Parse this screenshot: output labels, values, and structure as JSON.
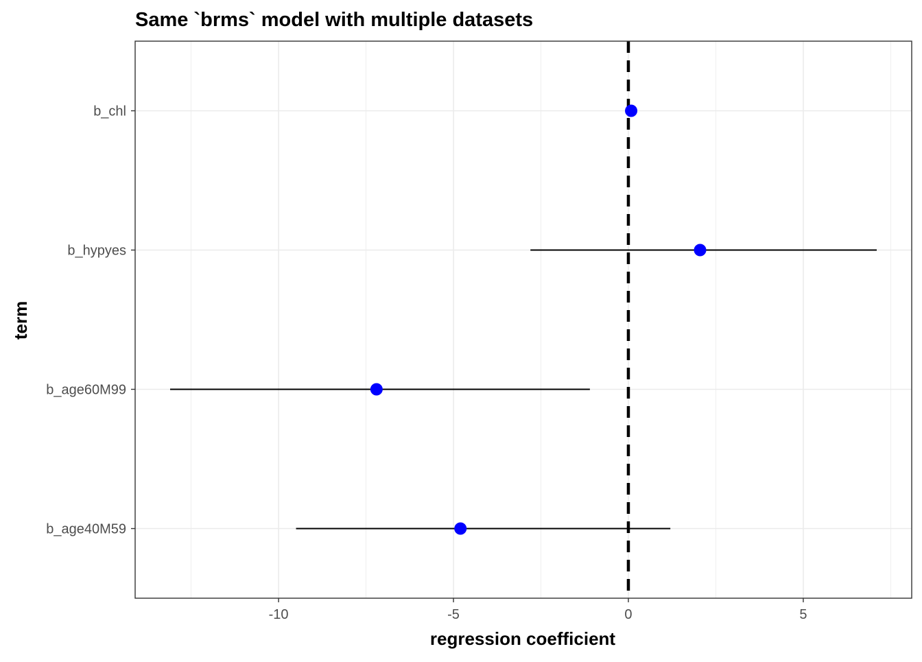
{
  "chart_data": {
    "type": "forest",
    "title": "Same `brms` model with multiple datasets",
    "xlabel": "regression coefficient",
    "ylabel": "term",
    "xlim": [
      -14.1,
      8.1
    ],
    "x_ticks": [
      -10,
      -5,
      0,
      5
    ],
    "x_tick_labels": [
      "-10",
      "-5",
      "0",
      "5"
    ],
    "categories": [
      "b_chl",
      "b_hypyes",
      "b_age60M99",
      "b_age40M59"
    ],
    "series": [
      {
        "estimate": [
          0.08,
          2.05,
          -7.2,
          -4.8
        ],
        "lower": [
          0.03,
          -2.8,
          -13.1,
          -9.5
        ],
        "upper": [
          0.13,
          7.1,
          -1.1,
          1.2
        ]
      }
    ],
    "reference_line": 0,
    "grid": true,
    "legend": "none",
    "colors": {
      "point": "#0000ff",
      "interval": "#000000",
      "reference_line": "#000000",
      "grid": "#ebebeb",
      "panel_border": "#333333"
    }
  }
}
